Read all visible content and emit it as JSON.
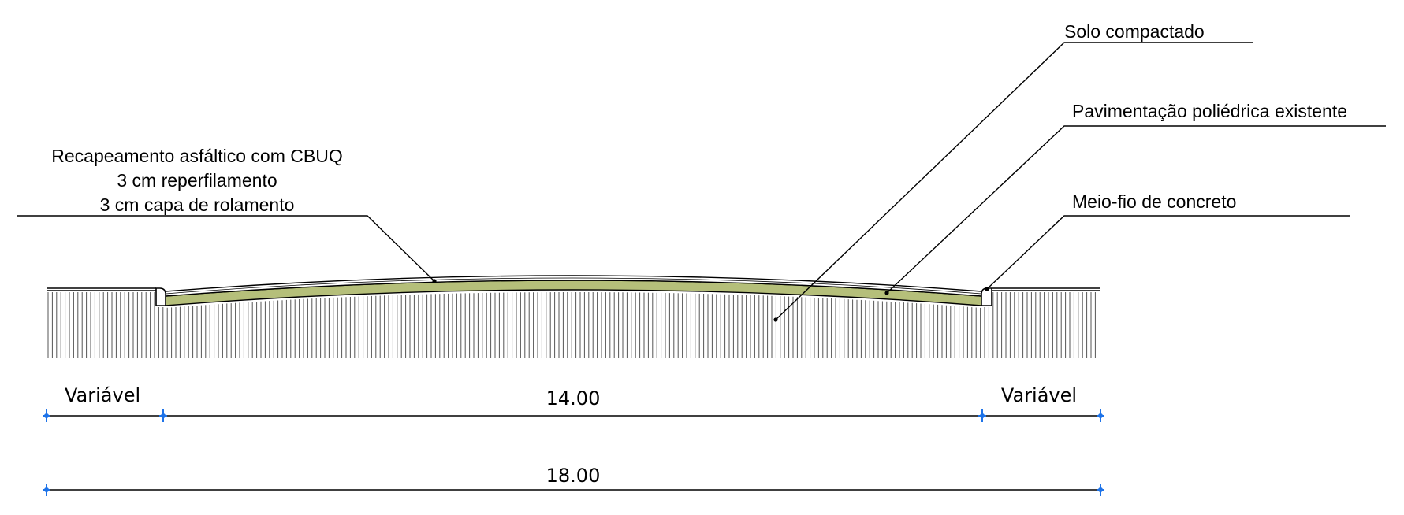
{
  "labels": {
    "overlay_line1": "Recapeamento asfáltico com CBUQ",
    "overlay_line2": "3 cm reperfilamento",
    "overlay_line3": "3 cm capa de rolamento",
    "solo": "Solo compactado",
    "pavimentacao": "Pavimentação poliédrica existente",
    "meio_fio": "Meio-fio de concreto"
  },
  "dimensions": {
    "left_variable": "Variável",
    "center_width": "14.00",
    "right_variable": "Variável",
    "total_width": "18.00"
  },
  "colors": {
    "asphalt_fill": "#b5bf7a",
    "line": "#000000",
    "hatch": "#555555",
    "dimension_tick": "#1e73e8"
  }
}
